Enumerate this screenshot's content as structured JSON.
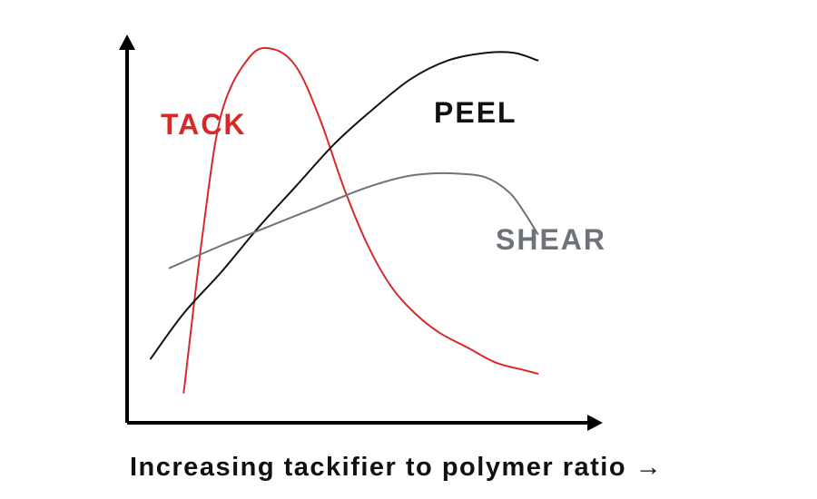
{
  "chart_data": {
    "type": "line",
    "title": "",
    "xlabel": "Increasing tackifier to polymer ratio →",
    "ylabel": "",
    "xlim": [
      0,
      100
    ],
    "ylim": [
      0,
      100
    ],
    "grid": false,
    "legend": "inline labels",
    "series": [
      {
        "name": "TACK",
        "color": "#d62a2a",
        "x": [
          12,
          16,
          20,
          26,
          31,
          36,
          41,
          46,
          51,
          56,
          61,
          66,
          72,
          78,
          84,
          87
        ],
        "y": [
          8,
          50,
          82,
          97,
          99,
          94,
          80,
          62,
          47,
          36,
          29,
          24,
          20,
          16,
          14,
          13
        ]
      },
      {
        "name": "PEEL",
        "color": "#111111",
        "x": [
          5,
          12,
          20,
          28,
          36,
          44,
          52,
          60,
          68,
          76,
          82,
          87
        ],
        "y": [
          17,
          29,
          40,
          52,
          63,
          74,
          83,
          91,
          96,
          98,
          98,
          96
        ]
      },
      {
        "name": "SHEAR",
        "color": "#6e7379",
        "x": [
          9,
          20,
          30,
          40,
          50,
          58,
          64,
          70,
          76,
          81,
          84,
          87
        ],
        "y": [
          41,
          47,
          52,
          57,
          62,
          65,
          66,
          66,
          65,
          61,
          56,
          50
        ]
      }
    ]
  }
}
